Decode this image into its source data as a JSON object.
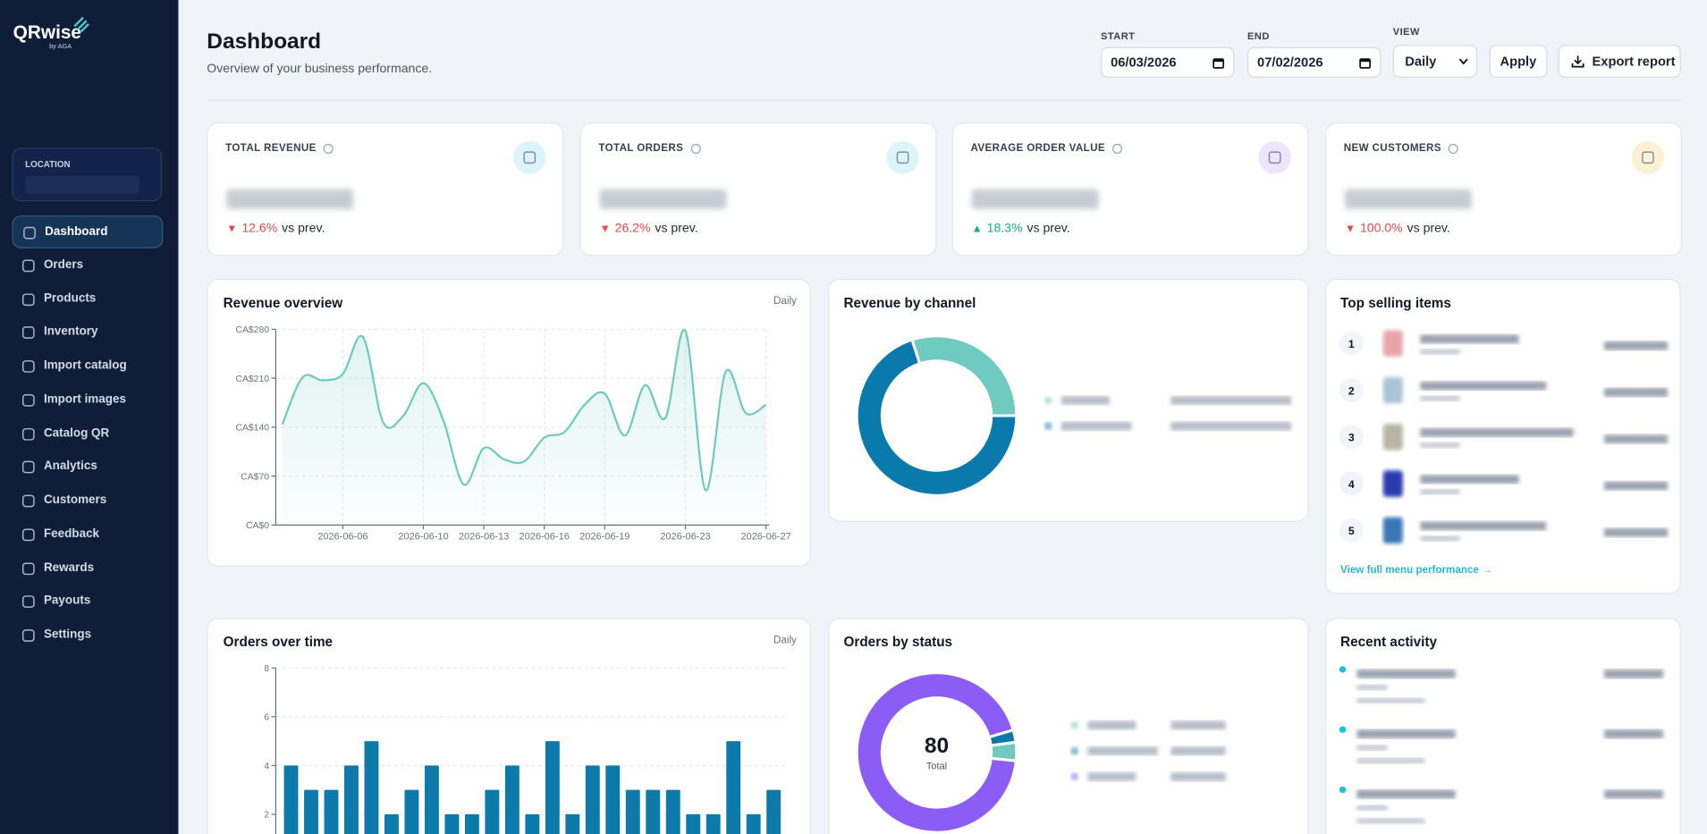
{
  "sidebar": {
    "brand": "QRwise",
    "brand_sub": "by AGA",
    "location_label": "LOCATION",
    "nav": [
      "Dashboard",
      "Orders",
      "Products",
      "Inventory",
      "Import catalog",
      "Import images",
      "Catalog QR",
      "Analytics",
      "Customers",
      "Feedback",
      "Rewards",
      "Payouts",
      "Settings"
    ],
    "active": 0
  },
  "header": {
    "title": "Dashboard",
    "subtitle": "Overview of your business performance.",
    "start_label": "START",
    "start": "06/03/2026",
    "end_label": "END",
    "end": "07/02/2026",
    "view_label": "VIEW",
    "view": "Daily",
    "apply": "Apply",
    "export": "Export report"
  },
  "kpis": [
    {
      "label": "TOTAL REVENUE",
      "trend": "▼",
      "change": "12.6%",
      "compare": "vs prev.",
      "direction": "down",
      "icon_color": "#dcf5fb"
    },
    {
      "label": "TOTAL ORDERS",
      "trend": "▼",
      "change": "26.2%",
      "compare": "vs prev.",
      "direction": "down",
      "icon_color": "#dcf5fb"
    },
    {
      "label": "AVERAGE ORDER VALUE",
      "trend": "▲",
      "change": "18.3%",
      "compare": "vs prev.",
      "direction": "up",
      "icon_color": "#ece5fd"
    },
    {
      "label": "NEW CUSTOMERS",
      "trend": "▼",
      "change": "100.0%",
      "compare": "vs prev.",
      "direction": "down",
      "icon_color": "#fdf1d4"
    }
  ],
  "chart_data": [
    {
      "type": "line",
      "title": "Revenue overview",
      "badge": "Daily",
      "categories": [
        null,
        null,
        null,
        "2026-06-06",
        null,
        null,
        null,
        "2026-06-10",
        null,
        null,
        "2026-06-13",
        null,
        null,
        "2026-06-16",
        null,
        null,
        "2026-06-19",
        null,
        null,
        null,
        "2026-06-23",
        null,
        null,
        null,
        "2026-06-27"
      ],
      "values": [
        144,
        211,
        207,
        216,
        269,
        147,
        156,
        203,
        149,
        58,
        110,
        94,
        91,
        125,
        133,
        172,
        188,
        128,
        200,
        153,
        278,
        50,
        219,
        160,
        172
      ],
      "color": "#6ccabf",
      "ylim": [
        0,
        280
      ],
      "yticks": [
        {
          "value": 0,
          "label": "CA$0"
        },
        {
          "value": 70,
          "label": "CA$70"
        },
        {
          "value": 140,
          "label": "CA$140"
        },
        {
          "value": 210,
          "label": "CA$210"
        },
        {
          "value": 280,
          "label": "CA$280"
        }
      ],
      "grid": true
    },
    {
      "type": "donut",
      "title": "Revenue by channel",
      "values": [
        30,
        70
      ],
      "colors": [
        "#6fcac0",
        "#0a7aad"
      ]
    },
    {
      "type": "bar",
      "title": "Orders over time",
      "badge": "Daily",
      "values": [
        4,
        3,
        3,
        4,
        5,
        2,
        3,
        4,
        2,
        2,
        3,
        4,
        2,
        5,
        2,
        4,
        4,
        3,
        3,
        3,
        2,
        2,
        5,
        2,
        3
      ],
      "color": "#0c7bab",
      "ylim": [
        0,
        8
      ],
      "yticks": [
        2,
        4,
        6,
        8
      ],
      "grid": true
    },
    {
      "type": "donut",
      "title": "Orders by status",
      "values": [
        3,
        2,
        75
      ],
      "colors": [
        "#6fcac0",
        "#0a7aad",
        "#8b5cf6"
      ],
      "total": 80,
      "total_label": "Total"
    }
  ],
  "top_items": {
    "title": "Top selling items",
    "ranks": [
      1,
      2,
      3,
      4,
      5
    ],
    "link": "View full menu performance →"
  },
  "recent_activity": {
    "title": "Recent activity"
  }
}
